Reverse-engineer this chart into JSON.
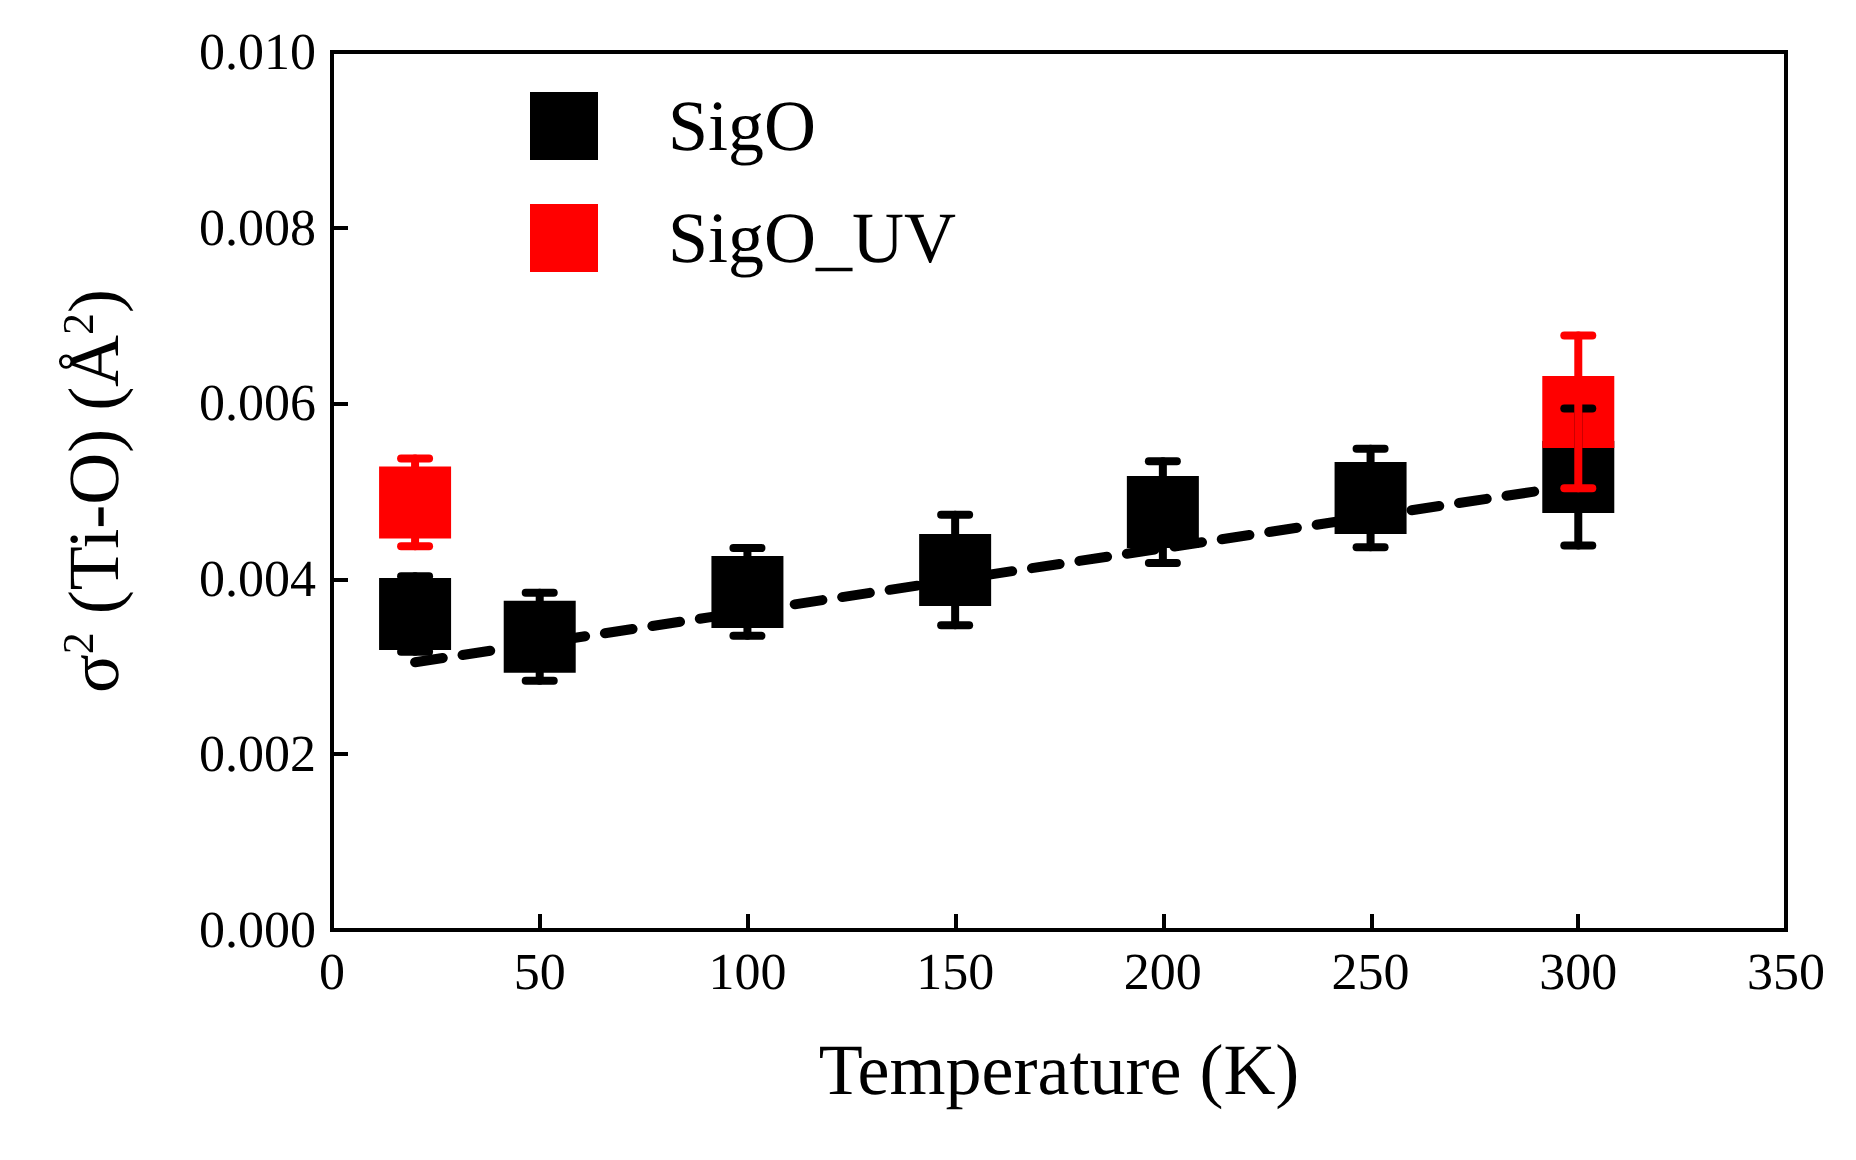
{
  "chart_data": {
    "type": "scatter",
    "xlabel": "Temperature (K)",
    "ylabel": "σ$^{2}$ (Ti-O) (Å$^{2}$)",
    "xlim": [
      0,
      350
    ],
    "xticks": [
      0,
      50,
      100,
      150,
      200,
      250,
      300,
      350
    ],
    "ylim": [
      0,
      0.01
    ],
    "yticks": [
      {
        "value": 0,
        "label": "0.000"
      },
      {
        "value": 0.002,
        "label": "0.002"
      },
      {
        "value": 0.004,
        "label": "0.004"
      },
      {
        "value": 0.006,
        "label": "0.006"
      },
      {
        "value": 0.008,
        "label": "0.008"
      },
      {
        "value": 0.01,
        "label": "0.010"
      }
    ],
    "grid": false,
    "legend": "top left",
    "marker": "square",
    "series": [
      {
        "name": "SigO",
        "color": "#000000",
        "x": [
          20,
          50,
          100,
          150,
          200,
          250,
          300
        ],
        "values": [
          0.0036,
          0.00334,
          0.00385,
          0.0041,
          0.00476,
          0.00492,
          0.00516
        ],
        "errors": [
          0.00043,
          0.0005,
          0.0005,
          0.00063,
          0.00058,
          0.00056,
          0.00078
        ]
      },
      {
        "name": "SigO_UV",
        "color": "#ff0000",
        "x": [
          20,
          300
        ],
        "values": [
          0.00487,
          0.0059
        ],
        "errors": [
          0.0005,
          0.00087
        ]
      },
      {
        "type": "line",
        "color": "#000000",
        "line_style": "dashed",
        "marker": "none",
        "x": [
          20,
          300
        ],
        "values": [
          0.00305,
          0.00507
        ]
      }
    ]
  }
}
